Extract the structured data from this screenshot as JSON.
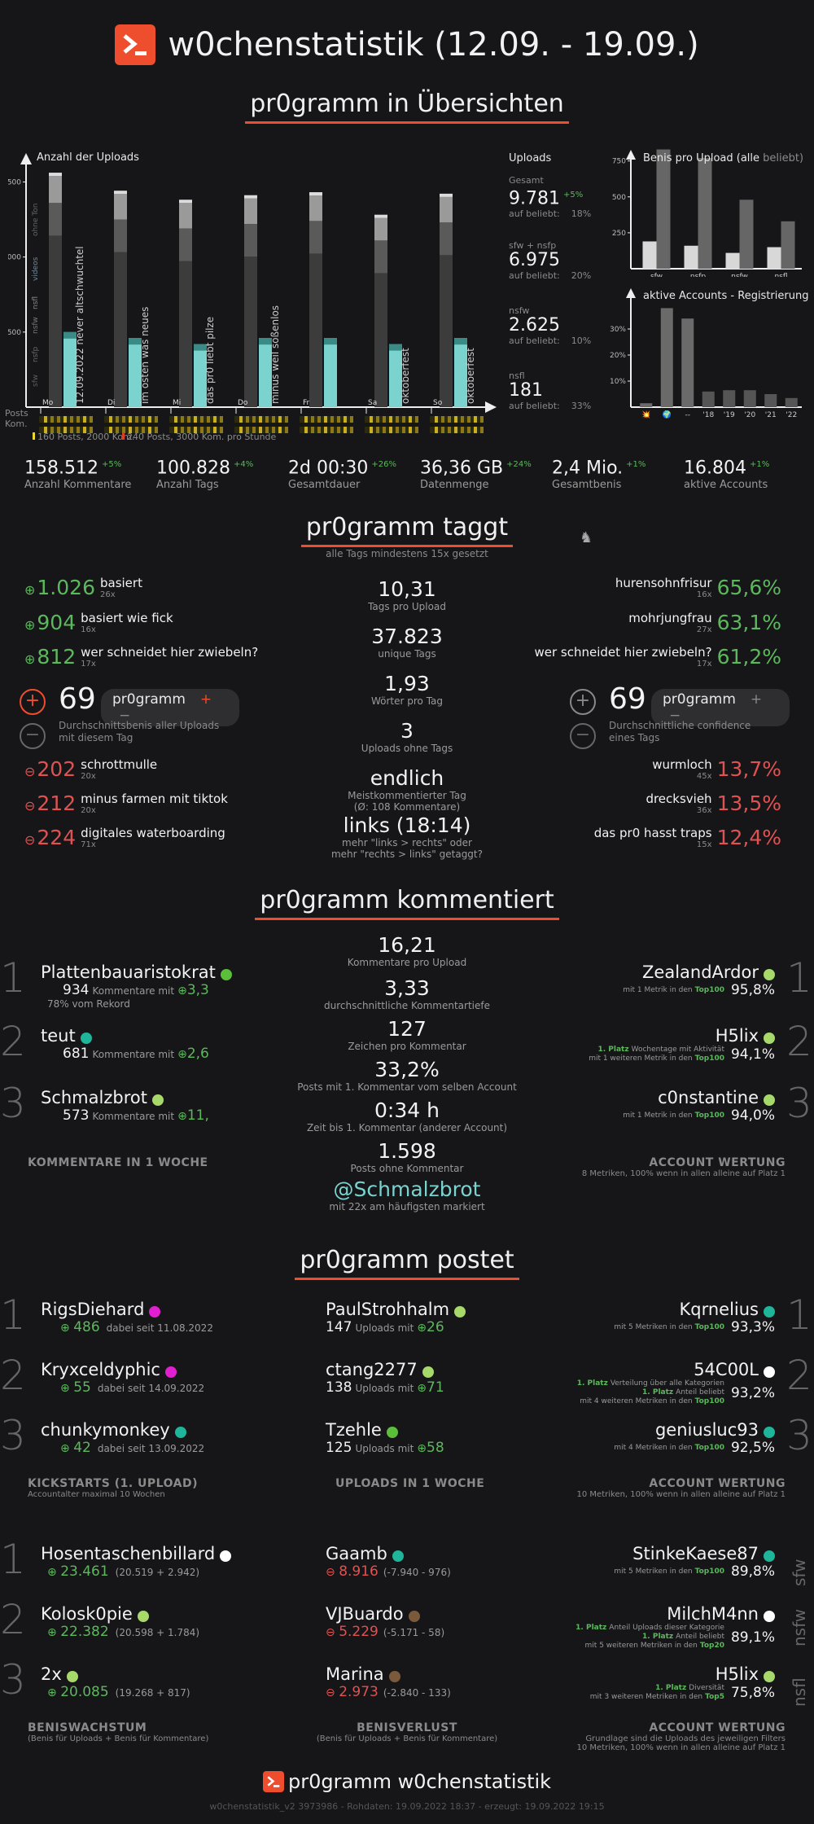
{
  "header": {
    "title": "w0chenstatistik (12.09. - 19.09.)"
  },
  "overview": {
    "title": "pr0gramm in Übersichten",
    "uploads_chart": {
      "title": "Anzahl der Uploads",
      "yticks": [
        "1500",
        "1000",
        "500"
      ],
      "days": [
        "Mo",
        "Di",
        "Mi",
        "Do",
        "Fr",
        "Sa",
        "So"
      ],
      "row_posts": "Posts",
      "row_kom": "Kom.",
      "legend_yellow": "160 Posts, 2000 Kom.",
      "legend_red": "240 Posts, 3000 Kom. pro Stunde",
      "series_labels": [
        "sfw",
        "nsfp",
        "nsfw",
        "nsfl",
        "videos",
        "ohne Ton"
      ],
      "day_notes": [
        "12.09.2022 never altschwuchtel",
        "im osten was neues",
        "das pr0 liebt pilze",
        "minus weil soßenlos",
        "",
        "oktoberfest",
        "oktoberfest"
      ]
    },
    "uploads_box": {
      "title": "Uploads",
      "items": [
        {
          "label": "Gesamt",
          "value": "9.781",
          "delta": "+5%",
          "sub": "auf beliebt:",
          "pct": "18%"
        },
        {
          "label": "sfw + nsfp",
          "value": "6.975",
          "delta": "",
          "sub": "auf beliebt:",
          "pct": "20%"
        },
        {
          "label": "nsfw",
          "value": "2.625",
          "delta": "",
          "sub": "auf beliebt:",
          "pct": "10%"
        },
        {
          "label": "nsfl",
          "value": "181",
          "delta": "",
          "sub": "auf beliebt:",
          "pct": "33%"
        }
      ]
    },
    "benis_chart": {
      "title": "Benis pro Upload (alle",
      "title2": "beliebt)",
      "yticks": [
        "750",
        "500",
        "250"
      ],
      "categories": [
        "sfw",
        "nsfp",
        "nsfw",
        "nsfl"
      ]
    },
    "accounts_chart": {
      "title": "aktive Accounts - Registrierung",
      "yticks": [
        "30%",
        "20%",
        "10%"
      ],
      "categories": [
        "💥",
        "🌍",
        "--",
        "'18",
        "'19",
        "'20",
        "'21",
        "'22"
      ]
    },
    "stats": [
      {
        "value": "158.512",
        "delta": "+5%",
        "label": "Anzahl Kommentare"
      },
      {
        "value": "100.828",
        "delta": "+4%",
        "label": "Anzahl Tags"
      },
      {
        "value": "2d 00:30",
        "delta": "+26%",
        "label": "Gesamtdauer"
      },
      {
        "value": "36,36 GB",
        "delta": "+24%",
        "label": "Datenmenge"
      },
      {
        "value": "2,4 Mio.",
        "delta": "+1%",
        "label": "Gesamtbenis"
      },
      {
        "value": "16.804",
        "delta": "+1%",
        "label": "aktive Accounts"
      }
    ]
  },
  "chart_data": [
    {
      "type": "bar",
      "title": "Anzahl der Uploads",
      "categories": [
        "Mo",
        "Di",
        "Mi",
        "Do",
        "Fr",
        "Sa",
        "So"
      ],
      "ylim": [
        0,
        1600
      ],
      "series": [
        {
          "name": "gesamt",
          "values": [
            1540,
            1420,
            1360,
            1390,
            1410,
            1260,
            1400
          ]
        },
        {
          "name": "sfw",
          "values": [
            1360,
            1250,
            1190,
            1220,
            1240,
            1110,
            1230
          ]
        },
        {
          "name": "beliebt",
          "values": [
            500,
            460,
            420,
            460,
            460,
            420,
            460
          ]
        }
      ]
    },
    {
      "type": "bar",
      "title": "Benis pro Upload",
      "categories": [
        "sfw",
        "nsfp",
        "nsfw",
        "nsfl"
      ],
      "ylim": [
        0,
        850
      ],
      "series": [
        {
          "name": "alle",
          "values": [
            190,
            160,
            110,
            150
          ]
        },
        {
          "name": "beliebt",
          "values": [
            830,
            770,
            480,
            330
          ]
        }
      ]
    },
    {
      "type": "bar",
      "title": "aktive Accounts - Registrierung",
      "categories": [
        "💥",
        "🌍",
        "--",
        "'18",
        "'19",
        "'20",
        "'21",
        "'22"
      ],
      "ylim": [
        0,
        40
      ],
      "series": [
        {
          "name": "aktive Accounts",
          "values": [
            1.5,
            38,
            34,
            6,
            6.5,
            6.5,
            5,
            3.5
          ]
        }
      ]
    }
  ],
  "tags": {
    "title": "pr0gramm taggt",
    "subtitle": "alle Tags mindestens 15x gesetzt",
    "top_benis": [
      {
        "value": "1.026",
        "name": "basiert",
        "count": "26x"
      },
      {
        "value": "904",
        "name": "basiert wie fick",
        "count": "16x"
      },
      {
        "value": "812",
        "name": "wer schneidet hier zwiebeln?",
        "count": "17x"
      }
    ],
    "low_benis": [
      {
        "value": "202",
        "name": "schrottmulle",
        "count": "20x"
      },
      {
        "value": "212",
        "name": "minus farmen mit tiktok",
        "count": "20x"
      },
      {
        "value": "224",
        "name": "digitales waterboarding",
        "count": "71x"
      }
    ],
    "avg_benis": {
      "value": "69",
      "pill": "pr0gramm",
      "desc1": "Durchschnittsbenis aller Uploads",
      "desc2": "mit diesem Tag"
    },
    "top_conf": [
      {
        "value": "65,6%",
        "name": "hurensohnfrisur",
        "count": "16x"
      },
      {
        "value": "63,1%",
        "name": "mohrjungfrau",
        "count": "27x"
      },
      {
        "value": "61,2%",
        "name": "wer schneidet hier zwiebeln?",
        "count": "17x"
      }
    ],
    "low_conf": [
      {
        "value": "13,7%",
        "name": "wurmloch",
        "count": "45x"
      },
      {
        "value": "13,5%",
        "name": "drecksvieh",
        "count": "36x"
      },
      {
        "value": "12,4%",
        "name": "das pr0 hasst traps",
        "count": "15x"
      }
    ],
    "avg_conf": {
      "value": "69",
      "pill": "pr0gramm",
      "desc1": "Durchschnittliche confidence",
      "desc2": "eines Tags"
    },
    "center": [
      {
        "value": "10,31",
        "label": "Tags pro Upload"
      },
      {
        "value": "37.823",
        "label": "unique Tags"
      },
      {
        "value": "1,93",
        "label": "Wörter pro Tag"
      },
      {
        "value": "3",
        "label": "Uploads ohne Tags"
      },
      {
        "value": "endlich",
        "label": "Meistkommentierter Tag",
        "label2": "(Ø: 108 Kommentare)"
      },
      {
        "value": "links (18:14)",
        "label": "mehr \"links > rechts\" oder",
        "label2": "mehr \"rechts > links\" getaggt?"
      }
    ]
  },
  "comments": {
    "title": "pr0gramm kommentiert",
    "left": [
      {
        "rank": "1",
        "name": "Plattenbauaristokrat",
        "dot": "#5bbf3a",
        "count": "934",
        "mid": "Kommentare mit",
        "val": "3,3",
        "extra": "78% vom Rekord"
      },
      {
        "rank": "2",
        "name": "teut",
        "dot": "#1fb59a",
        "count": "681",
        "mid": "Kommentare mit",
        "val": "2,6",
        "extra": ""
      },
      {
        "rank": "3",
        "name": "Schmalzbrot",
        "dot": "#a6d96a",
        "count": "573",
        "mid": "Kommentare mit",
        "val": "11,",
        "extra": ""
      }
    ],
    "left_footer": "KOMMENTARE IN 1 WOCHE",
    "center": [
      {
        "value": "16,21",
        "label": "Kommentare pro Upload"
      },
      {
        "value": "3,33",
        "label": "durchschnittliche Kommentartiefe"
      },
      {
        "value": "127",
        "label": "Zeichen pro Kommentar"
      },
      {
        "value": "33,2%",
        "label": "Posts mit 1. Kommentar vom selben Account"
      },
      {
        "value": "0:34 h",
        "label": "Zeit bis 1. Kommentar (anderer Account)"
      },
      {
        "value": "1.598",
        "label": "Posts ohne Kommentar"
      }
    ],
    "mention": {
      "value": "@Schmalzbrot",
      "label": "mit 22x am häufigsten markiert"
    },
    "right": [
      {
        "rank": "1",
        "name": "ZealandArdor",
        "dot": "#a6d96a",
        "l1a": "",
        "l1b": "",
        "l2": "mit 1 Metrik in den",
        "top": "Top100",
        "pct": "95,8%"
      },
      {
        "rank": "2",
        "name": "H5lix",
        "dot": "#a6d96a",
        "l1a": "1. Platz",
        "l1b": "Wochentage mit Aktivität",
        "l2": "mit 1 weiteren Metrik in den",
        "top": "Top100",
        "pct": "94,1%"
      },
      {
        "rank": "3",
        "name": "c0nstantine",
        "dot": "#a6d96a",
        "l1a": "",
        "l1b": "",
        "l2": "mit 1 Metrik in den",
        "top": "Top100",
        "pct": "94,0%"
      }
    ],
    "right_footer": "ACCOUNT WERTUNG",
    "right_footer_sub": "8 Metriken, 100% wenn in allen alleine auf Platz 1"
  },
  "posts": {
    "title": "pr0gramm postet",
    "kick": [
      {
        "rank": "1",
        "name": "RigsDiehard",
        "dot": "#e020d0",
        "val": "486",
        "since": "dabei seit 11.08.2022"
      },
      {
        "rank": "2",
        "name": "Kryxceldyphic",
        "dot": "#e020d0",
        "val": "55",
        "since": "dabei seit 14.09.2022"
      },
      {
        "rank": "3",
        "name": "chunkymonkey",
        "dot": "#1fb59a",
        "val": "42",
        "since": "dabei seit 13.09.2022"
      }
    ],
    "kick_footer": "KICKSTARTS (1. UPLOAD)",
    "kick_footer_sub": "Accountalter maximal 10 Wochen",
    "up": [
      {
        "name": "PaulStrohhalm",
        "dot": "#a6d96a",
        "count": "147",
        "mid": "Uploads mit",
        "val": "26"
      },
      {
        "name": "ctang2277",
        "dot": "#a6d96a",
        "count": "138",
        "mid": "Uploads mit",
        "val": "71"
      },
      {
        "name": "Tzehle",
        "dot": "#5bbf3a",
        "count": "125",
        "mid": "Uploads mit",
        "val": "58"
      }
    ],
    "up_footer": "UPLOADS IN 1 WOCHE",
    "acc": [
      {
        "rank": "1",
        "name": "Kqrnelius",
        "dot": "#1fb59a",
        "l1a": "",
        "l1b": "",
        "l2": "mit 5 Metriken in den",
        "top": "Top100",
        "pct": "93,3%"
      },
      {
        "rank": "2",
        "name": "54C00L",
        "dot": "#ffffff",
        "l1a": "1. Platz",
        "l1b": "Verteilung über alle Kategorien",
        "l1c": "1. Platz",
        "l1d": "Anteil beliebt",
        "l2": "mit 4 weiteren Metriken in den",
        "top": "Top100",
        "pct": "93,2%"
      },
      {
        "rank": "3",
        "name": "geniusluc93",
        "dot": "#1fb59a",
        "l1a": "",
        "l1b": "",
        "l2": "mit 4 Metriken in den",
        "top": "Top100",
        "pct": "92,5%"
      }
    ],
    "acc_footer": "ACCOUNT WERTUNG",
    "acc_footer_sub": "10 Metriken, 100% wenn in allen alleine auf Platz 1"
  },
  "benis": {
    "grow": [
      {
        "rank": "1",
        "name": "Hosentaschenbillard",
        "dot": "#ffffff",
        "val": "23.461",
        "detail": "(20.519 + 2.942)"
      },
      {
        "rank": "2",
        "name": "Kolosk0pie",
        "dot": "#a6d96a",
        "val": "22.382",
        "detail": "(20.598 + 1.784)"
      },
      {
        "rank": "3",
        "name": "2x",
        "dot": "#a6d96a",
        "val": "20.085",
        "detail": "(19.268 + 817)"
      }
    ],
    "grow_footer": "BENISWACHSTUM",
    "grow_footer_sub": "(Benis für Uploads + Benis für Kommentare)",
    "loss": [
      {
        "name": "Gaamb",
        "dot": "#1fb59a",
        "val": "8.916",
        "detail": "(-7.940 - 976)"
      },
      {
        "name": "VJBuardo",
        "dot": "#7a5a3a",
        "val": "5.229",
        "detail": "(-5.171 - 58)"
      },
      {
        "name": "Marina",
        "dot": "#7a5a3a",
        "val": "2.973",
        "detail": "(-2.840 - 133)"
      }
    ],
    "loss_footer": "BENISVERLUST",
    "loss_footer_sub": "(Benis für Uploads + Benis für Kommentare)",
    "filt": [
      {
        "tag": "sfw",
        "name": "StinkeKaese87",
        "dot": "#1fb59a",
        "l1a": "",
        "l1b": "",
        "l2": "mit 5 Metriken in den",
        "top": "Top100",
        "pct": "89,8%"
      },
      {
        "tag": "nsfw",
        "name": "MilchM4nn",
        "dot": "#ffffff",
        "l1a": "1. Platz",
        "l1b": "Anteil Uploads dieser Kategorie",
        "l1c": "1. Platz",
        "l1d": "Anteil beliebt",
        "l2": "mit 5 weiteren Metriken in den",
        "top": "Top20",
        "pct": "89,1%"
      },
      {
        "tag": "nsfl",
        "name": "H5lix",
        "dot": "#a6d96a",
        "l1a": "1. Platz",
        "l1b": "Diversität",
        "l2": "mit 3 weiteren Metriken in den",
        "top": "Top5",
        "pct": "75,8%"
      }
    ],
    "filt_footer": "ACCOUNT WERTUNG",
    "filt_footer_sub1": "Grundlage sind die Uploads des jeweiligen Filters",
    "filt_footer_sub2": "10 Metriken, 100% wenn in allen alleine auf Platz 1"
  },
  "footer": {
    "brand": "pr0gramm w0chenstatistik",
    "meta": "w0chenstatistik_v2 3973986 - Rohdaten: 19.09.2022 18:37 - erzeugt: 19.09.2022 19:15"
  },
  "colors": {
    "accent": "#ee4d2e",
    "positive": "#5cb85c",
    "negative": "#e05252",
    "teal": "#7ad3cf"
  }
}
